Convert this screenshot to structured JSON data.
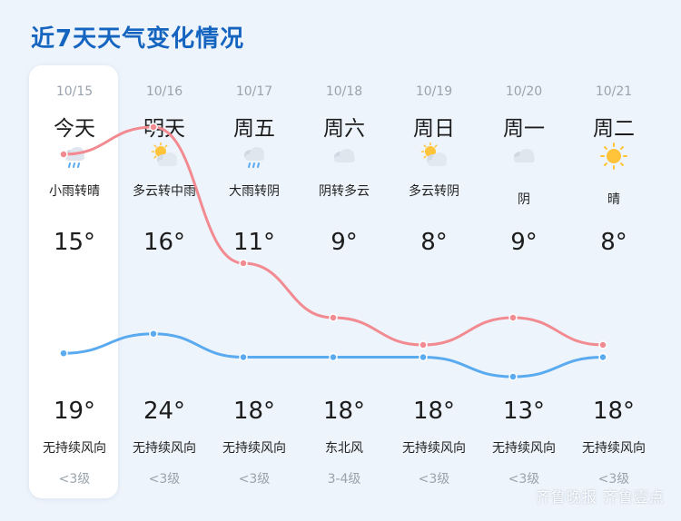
{
  "title": "近7天天气变化情况",
  "watermark": "齐鲁晚报 齐鲁壹点",
  "colors": {
    "high_line": "#f28b91",
    "low_line": "#5aaaf0",
    "title": "#1565c0"
  },
  "chart_data": {
    "type": "line",
    "x": [
      "10/15",
      "10/16",
      "10/17",
      "10/18",
      "10/19",
      "10/20",
      "10/21"
    ],
    "series": [
      {
        "values": [
          15,
          16,
          11,
          9,
          8,
          9,
          8
        ]
      },
      {
        "values": [
          19,
          24,
          18,
          18,
          18,
          13,
          18
        ]
      }
    ]
  },
  "days": [
    {
      "date": "10/15",
      "name": "今天",
      "icon": "rain-cloud-icon",
      "desc": "小雨转晴",
      "high": "15°",
      "low": "19°",
      "wind": "无持续风向",
      "level": "<3级"
    },
    {
      "date": "10/16",
      "name": "明天",
      "icon": "partly-cloudy-icon",
      "desc": "多云转中雨",
      "high": "16°",
      "low": "24°",
      "wind": "无持续风向",
      "level": "<3级"
    },
    {
      "date": "10/17",
      "name": "周五",
      "icon": "rain-cloud-icon",
      "desc": "大雨转阴",
      "high": "11°",
      "low": "18°",
      "wind": "无持续风向",
      "level": "<3级"
    },
    {
      "date": "10/18",
      "name": "周六",
      "icon": "cloud-icon",
      "desc": "阴转多云",
      "high": "9°",
      "low": "18°",
      "wind": "东北风",
      "level": "3-4级"
    },
    {
      "date": "10/19",
      "name": "周日",
      "icon": "partly-cloudy-icon",
      "desc": "多云转阴",
      "high": "8°",
      "low": "18°",
      "wind": "无持续风向",
      "level": "<3级"
    },
    {
      "date": "10/20",
      "name": "周一",
      "icon": "cloud-icon",
      "desc": "阴",
      "high": "9°",
      "low": "13°",
      "wind": "无持续风向",
      "level": "<3级"
    },
    {
      "date": "10/21",
      "name": "周二",
      "icon": "sun-icon",
      "desc": "晴",
      "high": "8°",
      "low": "18°",
      "wind": "无持续风向",
      "level": "<3级"
    }
  ]
}
